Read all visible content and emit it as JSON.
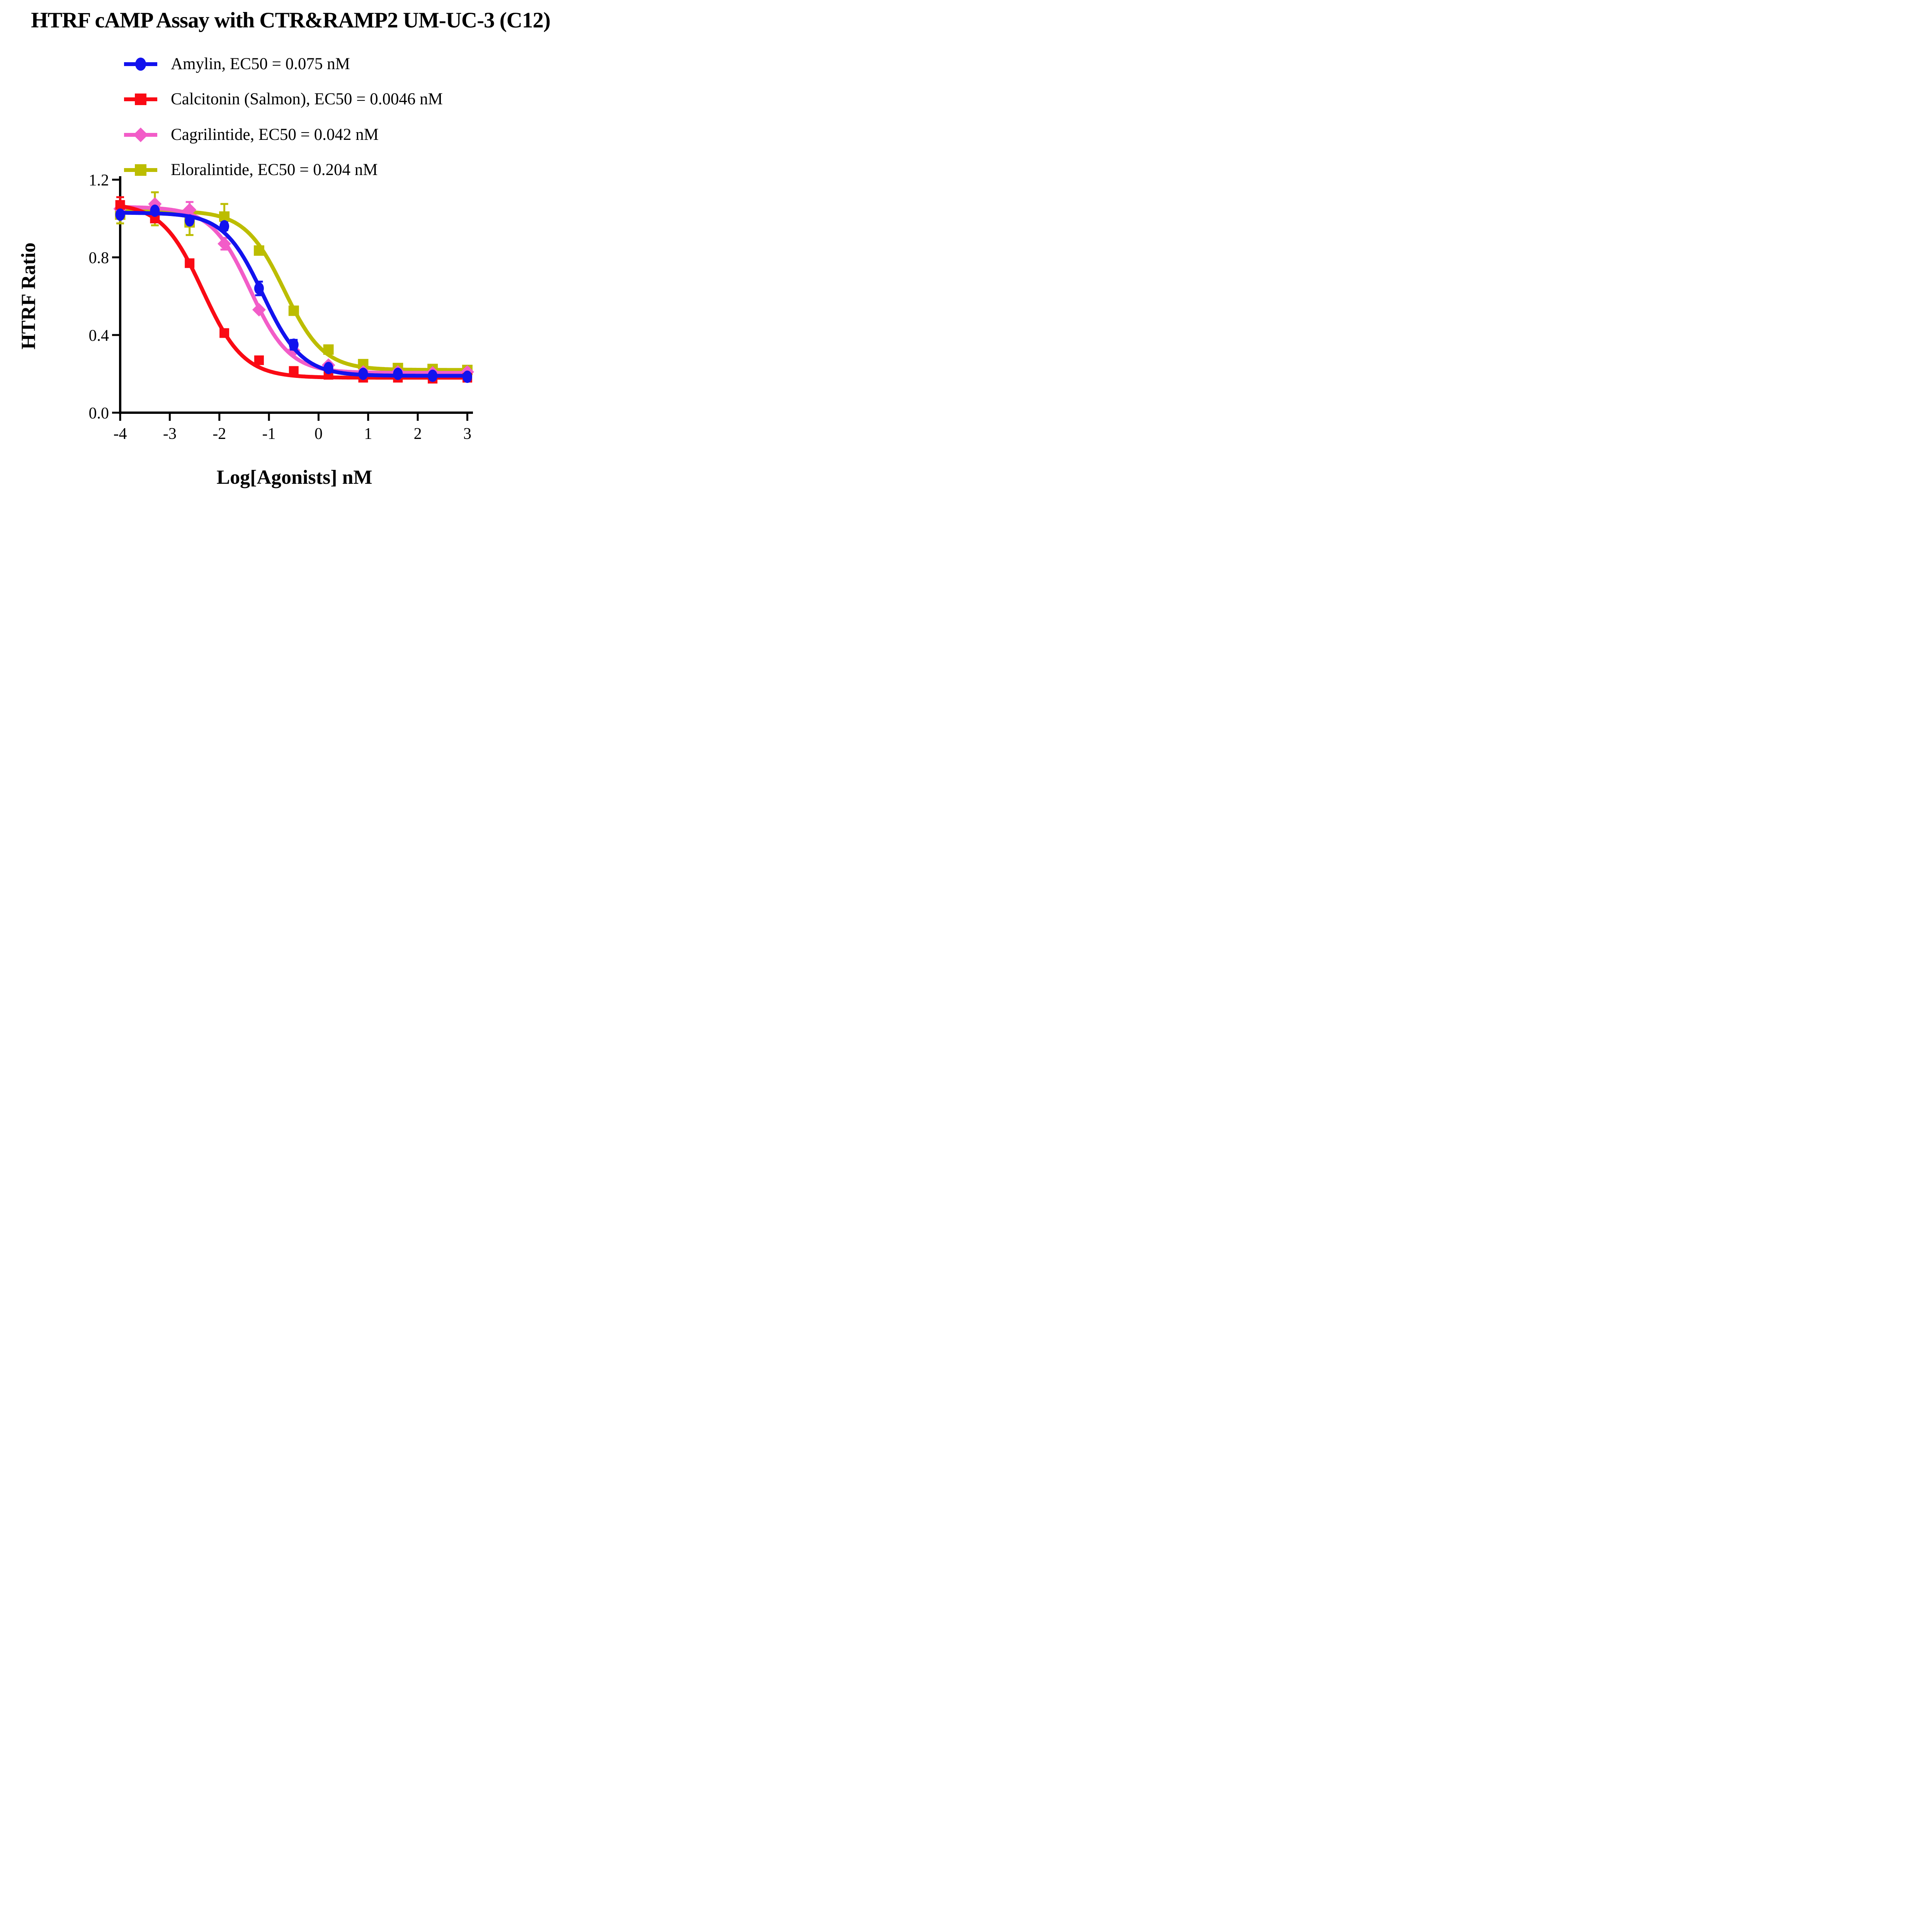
{
  "title": "HTRF cAMP Assay with CTR&RAMP2 UM-UC-3 (C12)",
  "colors": {
    "amylin": "#1212ee",
    "calcitonin": "#fa0a14",
    "cagrilintide": "#f25cc8",
    "eloralintide": "#bcbd00",
    "axis": "#000000",
    "background": "#ffffff"
  },
  "legend": [
    {
      "label": "Amylin, EC50 = 0.075 nM",
      "series": "amylin",
      "marker": "circle"
    },
    {
      "label": "Calcitonin (Salmon), EC50 = 0.0046 nM",
      "series": "calcitonin",
      "marker": "square"
    },
    {
      "label": "Cagrilintide, EC50 = 0.042 nM",
      "series": "cagrilintide",
      "marker": "diamond"
    },
    {
      "label": "Eloralintide, EC50 = 0.204 nM",
      "series": "eloralintide",
      "marker": "square"
    }
  ],
  "chart_data": {
    "type": "line",
    "subtype": "dose-response-scatter-with-4PL-fit",
    "title": "HTRF cAMP Assay with CTR&RAMP2 UM-UC-3 (C12)",
    "xlabel": "Log[Agonists] nM",
    "ylabel": "HTRF Ratio",
    "xlim": [
      -4,
      3
    ],
    "ylim": [
      0.0,
      1.2
    ],
    "grid": false,
    "legend_position": "top-left-above-plot",
    "xticks": [
      -4,
      -3,
      -2,
      -1,
      0,
      1,
      2,
      3
    ],
    "xtick_labels": [
      "-4",
      "-3",
      "-2",
      "-1",
      "0",
      "1",
      "2",
      "3"
    ],
    "yticks": [
      0.0,
      0.4,
      0.8,
      1.2
    ],
    "ytick_labels": [
      "0.0",
      "0.4",
      "0.8",
      "1.2"
    ],
    "x": [
      -4,
      -3.3,
      -2.6,
      -1.9,
      -1.2,
      -0.5,
      0.2,
      0.9,
      1.6,
      2.3,
      3
    ],
    "series": [
      {
        "name": "Amylin",
        "ec50_nM": 0.075,
        "color_key": "amylin",
        "marker": "circle",
        "values": [
          1.02,
          1.04,
          0.99,
          0.96,
          0.64,
          0.35,
          0.23,
          0.2,
          0.2,
          0.19,
          0.185
        ],
        "errors": [
          0,
          0,
          0,
          0.02,
          0.035,
          0.025,
          0,
          0,
          0,
          0,
          0
        ],
        "fit": {
          "top": 1.03,
          "bottom": 0.19,
          "logec50": -1.125,
          "hill": 1.1
        }
      },
      {
        "name": "Calcitonin (Salmon)",
        "ec50_nM": 0.0046,
        "color_key": "calcitonin",
        "marker": "square",
        "values": [
          1.07,
          1.0,
          0.77,
          0.41,
          0.27,
          0.215,
          0.195,
          0.18,
          0.18,
          0.175,
          0.18
        ],
        "errors": [
          0.04,
          0,
          0,
          0.02,
          0,
          0,
          0,
          0,
          0,
          0,
          0
        ],
        "fit": {
          "top": 1.08,
          "bottom": 0.18,
          "logec50": -2.337,
          "hill": 1.05
        }
      },
      {
        "name": "Cagrilintide",
        "ec50_nM": 0.042,
        "color_key": "cagrilintide",
        "marker": "diamond",
        "values": [
          1.05,
          1.075,
          1.045,
          0.87,
          0.53,
          0.32,
          0.245,
          0.21,
          0.21,
          0.205,
          0.21
        ],
        "errors": [
          0,
          0,
          0.04,
          0.03,
          0,
          0,
          0,
          0,
          0,
          0,
          0
        ],
        "fit": {
          "top": 1.06,
          "bottom": 0.205,
          "logec50": -1.377,
          "hill": 1.1
        }
      },
      {
        "name": "Eloralintide",
        "ec50_nM": 0.204,
        "color_key": "eloralintide",
        "marker": "square",
        "values": [
          1.02,
          1.05,
          0.98,
          1.01,
          0.835,
          0.525,
          0.325,
          0.25,
          0.23,
          0.225,
          0.22
        ],
        "errors": [
          0.045,
          0.085,
          0.065,
          0.065,
          0,
          0,
          0,
          0,
          0,
          0,
          0
        ],
        "fit": {
          "top": 1.04,
          "bottom": 0.22,
          "logec50": -0.69,
          "hill": 1.1
        }
      }
    ]
  }
}
